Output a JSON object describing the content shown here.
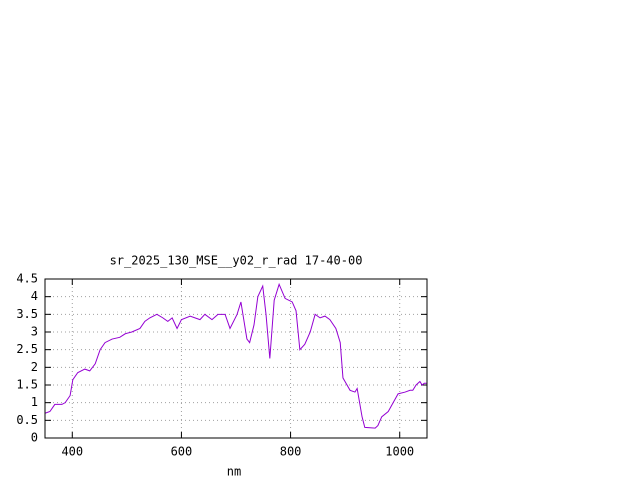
{
  "chart_data": {
    "type": "line",
    "title": "sr_2025_130_MSE__y02_r_rad 17-40-00",
    "x_label": "nm",
    "x": [
      350,
      359,
      368,
      381,
      387,
      396,
      401,
      410,
      423,
      432,
      442,
      451,
      460,
      473,
      487,
      497,
      509,
      524,
      533,
      542,
      555,
      566,
      575,
      583,
      592,
      600,
      616,
      634,
      643,
      656,
      667,
      680,
      689,
      702,
      709,
      720,
      725,
      733,
      740,
      749,
      755,
      762,
      770,
      779,
      790,
      803,
      810,
      817,
      826,
      836,
      845,
      854,
      863,
      872,
      883,
      891,
      896,
      909,
      918,
      922,
      931,
      936,
      955,
      960,
      967,
      979,
      988,
      997,
      1010,
      1019,
      1024,
      1030,
      1037,
      1041,
      1045,
      1050
    ],
    "values": [
      0.7,
      0.75,
      0.95,
      0.95,
      1.0,
      1.2,
      1.65,
      1.85,
      1.95,
      1.9,
      2.1,
      2.5,
      2.7,
      2.8,
      2.85,
      2.95,
      3.0,
      3.1,
      3.3,
      3.4,
      3.5,
      3.4,
      3.3,
      3.4,
      3.1,
      3.35,
      3.45,
      3.35,
      3.5,
      3.35,
      3.5,
      3.5,
      3.1,
      3.5,
      3.85,
      2.8,
      2.7,
      3.2,
      4.0,
      4.3,
      3.5,
      2.25,
      3.9,
      4.35,
      3.95,
      3.85,
      3.6,
      2.5,
      2.65,
      3.0,
      3.5,
      3.4,
      3.45,
      3.35,
      3.1,
      2.7,
      1.7,
      1.35,
      1.3,
      1.4,
      0.6,
      0.3,
      0.28,
      0.35,
      0.6,
      0.75,
      1.0,
      1.25,
      1.3,
      1.35,
      1.35,
      1.5,
      1.6,
      1.5,
      1.55,
      1.55
    ],
    "color": "#9400d3",
    "xlim": [
      350,
      1050
    ],
    "xticks": [
      400,
      600,
      800,
      1000
    ],
    "ylim": [
      0,
      4.5
    ],
    "yticks": [
      0,
      0.5,
      1,
      1.5,
      2,
      2.5,
      3,
      3.5,
      4,
      4.5
    ],
    "grid": true
  }
}
